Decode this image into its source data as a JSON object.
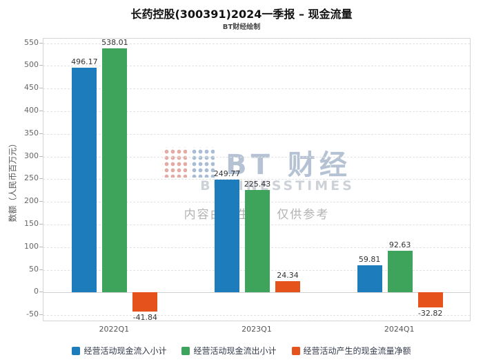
{
  "header": {
    "title": "长药控股(300391)2024一季报 – 现金流量",
    "subtitle": "BT财经绘制"
  },
  "watermark": {
    "brand": "BT 财经",
    "brand_sub": "BUSINESSTIMES",
    "notice": "内容由AI生成，仅供参考"
  },
  "chart_data": {
    "type": "bar",
    "title": "长药控股(300391)2024一季报 – 现金流量",
    "subtitle": "BT财经绘制",
    "categories": [
      "2022Q1",
      "2023Q1",
      "2024Q1"
    ],
    "series": [
      {
        "name": "经营活动现金流入小计",
        "color": "#1d7dbc",
        "values": [
          496.17,
          249.77,
          59.81
        ]
      },
      {
        "name": "经营活动现金流出小计",
        "color": "#3fa45b",
        "values": [
          538.01,
          225.43,
          92.63
        ]
      },
      {
        "name": "经营活动产生的现金流量净额",
        "color": "#e6521b",
        "values": [
          -41.84,
          24.34,
          -32.82
        ]
      }
    ],
    "xlabel": "",
    "ylabel": "数额（人民币百万元）",
    "ylim": [
      -65,
      560
    ],
    "yticks": [
      -50,
      0,
      50,
      100,
      150,
      200,
      250,
      300,
      350,
      400,
      450,
      500,
      550
    ],
    "grid": true,
    "legend_position": "bottom"
  }
}
